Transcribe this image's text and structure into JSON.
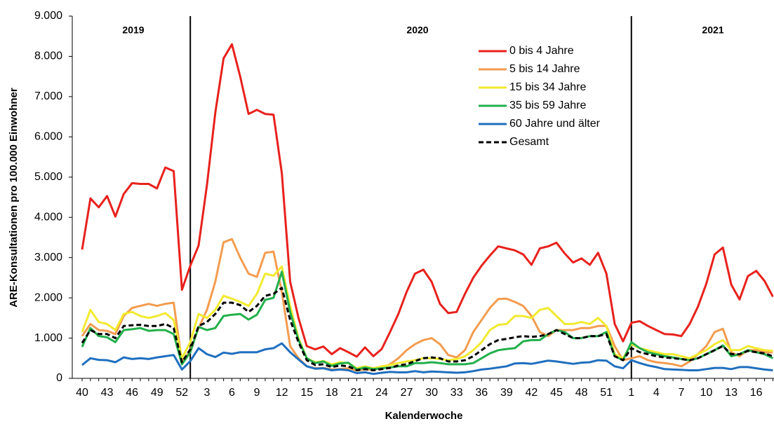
{
  "chart_data": {
    "type": "line",
    "x_label": "Kalenderwoche",
    "y_label": "ARE-Konsultationen pro 100.000 Einwohner",
    "year_labels": [
      "2019",
      "2020",
      "2021"
    ],
    "categories": [
      "40",
      null,
      null,
      "43",
      null,
      null,
      "46",
      null,
      null,
      "49",
      null,
      null,
      "52",
      null,
      null,
      "3",
      null,
      null,
      "6",
      null,
      null,
      "9",
      null,
      null,
      "12",
      null,
      null,
      "15",
      null,
      null,
      "18",
      null,
      null,
      "21",
      null,
      null,
      "24",
      null,
      null,
      "27",
      null,
      null,
      "30",
      null,
      null,
      "33",
      null,
      null,
      "36",
      null,
      null,
      "39",
      null,
      null,
      "42",
      null,
      null,
      "45",
      null,
      null,
      "48",
      null,
      null,
      "51",
      null,
      null,
      "1",
      null,
      null,
      "4",
      null,
      null,
      "7",
      null,
      null,
      "10",
      null,
      null,
      "13",
      null,
      null,
      "16",
      null,
      null
    ],
    "ylim": [
      0,
      9000
    ],
    "yticks": [
      0,
      {
        "value": 1000,
        "label": "1.000"
      },
      {
        "value": 2000,
        "label": "2.000"
      },
      {
        "value": 3000,
        "label": "3.000"
      },
      {
        "value": 4000,
        "label": "4.000"
      },
      {
        "value": 5000,
        "label": "5.000"
      },
      {
        "value": 6000,
        "label": "6.000"
      },
      {
        "value": 7000,
        "label": "7.000"
      },
      {
        "value": 8000,
        "label": "8.000"
      },
      {
        "value": 9000,
        "label": "9.000"
      }
    ],
    "series": [
      {
        "name": "0 bis 4 Jahre",
        "color": "#e8211c",
        "values": [
          3200,
          4470,
          4250,
          4530,
          4020,
          4580,
          4850,
          4830,
          4830,
          4720,
          5240,
          5150,
          2200,
          2800,
          3300,
          4800,
          6600,
          7950,
          8300,
          7500,
          6570,
          6670,
          6570,
          6550,
          5100,
          2400,
          1500,
          800,
          720,
          790,
          600,
          750,
          650,
          540,
          770,
          550,
          730,
          1150,
          1600,
          2150,
          2600,
          2700,
          2400,
          1850,
          1620,
          1650,
          2100,
          2500,
          2800,
          3050,
          3280,
          3230,
          3180,
          3080,
          2820,
          3230,
          3280,
          3370,
          3100,
          2880,
          2980,
          2820,
          3120,
          2600,
          1350,
          920,
          1380,
          1420,
          1300,
          1200,
          1100,
          1090,
          1050,
          1350,
          1780,
          2350,
          3080,
          3250,
          2330,
          1960,
          2540,
          2670,
          2420,
          2030
        ]
      },
      {
        "name": "5 bis 14 Jahre",
        "color": "#f39c4f",
        "values": [
          1050,
          1350,
          1200,
          1180,
          1100,
          1550,
          1750,
          1800,
          1850,
          1800,
          1850,
          1880,
          400,
          700,
          1250,
          1700,
          2400,
          3380,
          3460,
          3000,
          2600,
          2520,
          3120,
          3150,
          2150,
          800,
          500,
          300,
          250,
          260,
          220,
          230,
          250,
          200,
          220,
          210,
          260,
          350,
          500,
          700,
          850,
          950,
          1000,
          850,
          580,
          520,
          700,
          1150,
          1450,
          1750,
          1970,
          1980,
          1900,
          1800,
          1550,
          1150,
          1050,
          1200,
          1200,
          1200,
          1250,
          1250,
          1300,
          1300,
          800,
          450,
          500,
          550,
          450,
          400,
          380,
          350,
          300,
          420,
          600,
          800,
          1150,
          1230,
          650,
          550,
          700,
          700,
          650,
          650
        ]
      },
      {
        "name": "15 bis 34 Jahre",
        "color": "#f2ea2e",
        "values": [
          1150,
          1700,
          1400,
          1350,
          1200,
          1600,
          1650,
          1550,
          1500,
          1550,
          1620,
          1450,
          500,
          900,
          1600,
          1500,
          1700,
          2050,
          1980,
          1900,
          1800,
          2100,
          2600,
          2550,
          2780,
          1800,
          1000,
          500,
          400,
          430,
          350,
          400,
          380,
          250,
          300,
          250,
          300,
          330,
          380,
          420,
          450,
          500,
          500,
          480,
          450,
          480,
          550,
          700,
          900,
          1200,
          1330,
          1350,
          1550,
          1550,
          1500,
          1700,
          1750,
          1550,
          1350,
          1350,
          1400,
          1350,
          1500,
          1300,
          600,
          500,
          850,
          750,
          700,
          650,
          600,
          600,
          550,
          500,
          600,
          700,
          850,
          950,
          700,
          700,
          800,
          750,
          700,
          680
        ]
      },
      {
        "name": "35 bis 59 Jahre",
        "color": "#22b04b",
        "values": [
          780,
          1250,
          1050,
          1020,
          900,
          1200,
          1220,
          1250,
          1180,
          1200,
          1200,
          1100,
          350,
          650,
          1280,
          1200,
          1250,
          1550,
          1580,
          1600,
          1460,
          1580,
          1950,
          2000,
          2650,
          1650,
          950,
          500,
          380,
          420,
          310,
          370,
          390,
          220,
          270,
          230,
          250,
          270,
          300,
          300,
          380,
          380,
          400,
          380,
          350,
          350,
          350,
          380,
          500,
          620,
          700,
          730,
          750,
          920,
          950,
          950,
          1100,
          1200,
          1150,
          1000,
          1000,
          1050,
          1050,
          1150,
          550,
          450,
          900,
          750,
          650,
          600,
          550,
          520,
          480,
          450,
          500,
          600,
          700,
          820,
          550,
          600,
          700,
          650,
          600,
          500
        ]
      },
      {
        "name": "60 Jahre und älter",
        "color": "#1f6fbf",
        "values": [
          330,
          500,
          460,
          450,
          400,
          520,
          480,
          500,
          480,
          520,
          550,
          580,
          220,
          430,
          750,
          600,
          530,
          640,
          610,
          650,
          650,
          650,
          720,
          750,
          870,
          650,
          470,
          300,
          240,
          250,
          200,
          220,
          200,
          130,
          150,
          110,
          140,
          160,
          150,
          150,
          180,
          150,
          170,
          160,
          150,
          140,
          150,
          180,
          220,
          240,
          270,
          300,
          370,
          380,
          360,
          400,
          440,
          420,
          390,
          360,
          390,
          400,
          450,
          440,
          300,
          250,
          450,
          380,
          320,
          280,
          230,
          220,
          210,
          200,
          200,
          230,
          260,
          260,
          230,
          280,
          280,
          250,
          220,
          200
        ]
      },
      {
        "name": "Gesamt",
        "color": "#000000",
        "dashed": true,
        "values": [
          880,
          1200,
          1100,
          1100,
          1000,
          1300,
          1320,
          1330,
          1300,
          1300,
          1350,
          1250,
          400,
          720,
          1300,
          1400,
          1600,
          1880,
          1880,
          1820,
          1650,
          1800,
          2050,
          2100,
          2250,
          1450,
          900,
          450,
          330,
          350,
          280,
          320,
          300,
          200,
          230,
          200,
          230,
          260,
          320,
          350,
          430,
          500,
          520,
          500,
          420,
          420,
          450,
          550,
          700,
          850,
          950,
          980,
          1020,
          1050,
          1030,
          1050,
          1100,
          1200,
          1100,
          1000,
          1000,
          1050,
          1050,
          1100,
          550,
          450,
          750,
          650,
          600,
          550,
          520,
          500,
          480,
          450,
          500,
          600,
          700,
          800,
          600,
          600,
          680,
          650,
          620,
          550
        ]
      }
    ]
  }
}
